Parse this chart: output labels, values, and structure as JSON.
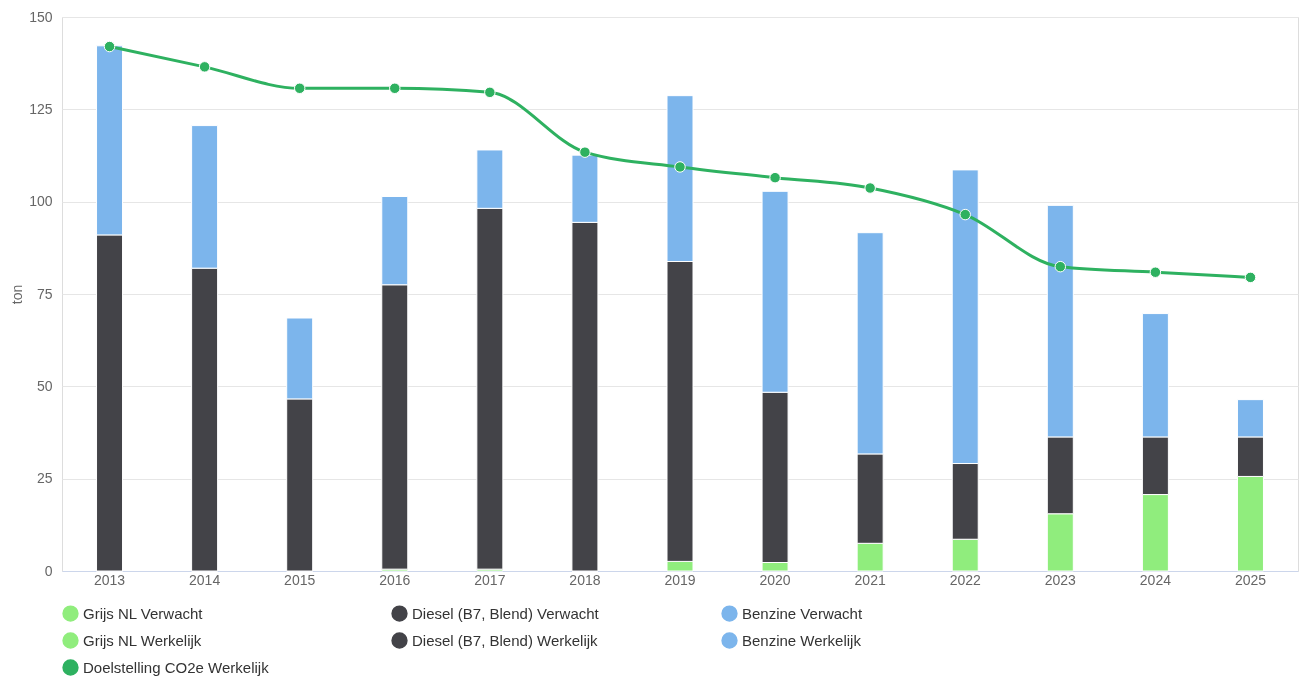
{
  "chart_data": {
    "type": "bar",
    "stacked": true,
    "ylabel": "ton",
    "categories": [
      "2013",
      "2014",
      "2015",
      "2016",
      "2017",
      "2018",
      "2019",
      "2020",
      "2021",
      "2022",
      "2023",
      "2024",
      "2025"
    ],
    "ylim": [
      0,
      150
    ],
    "yticks": [
      0,
      25,
      50,
      75,
      100,
      125,
      150
    ],
    "grid": "y",
    "legend": "bottom",
    "series": [
      {
        "name": "Grijs NL Verwacht",
        "color": "#90ed7d",
        "values": [
          null,
          null,
          null,
          null,
          null,
          null,
          null,
          null,
          null,
          null,
          15.5,
          20.7,
          25.6
        ]
      },
      {
        "name": "Diesel (B7, Blend) Verwacht",
        "color": "#434348",
        "values": [
          null,
          null,
          null,
          null,
          null,
          null,
          null,
          null,
          null,
          null,
          20.8,
          15.6,
          10.7
        ]
      },
      {
        "name": "Benzine Verwacht",
        "color": "#7cb5ec",
        "values": [
          null,
          null,
          null,
          null,
          null,
          null,
          null,
          null,
          null,
          null,
          62.7,
          33.4,
          10.1
        ]
      },
      {
        "name": "Grijs NL Werkelijk",
        "color": "#90ed7d",
        "values": [
          0,
          0,
          0,
          0.5,
          0.5,
          0,
          2.6,
          2.3,
          7.5,
          8.6,
          null,
          null,
          null
        ]
      },
      {
        "name": "Diesel (B7, Blend) Werkelijk",
        "color": "#434348",
        "values": [
          91,
          82,
          46.6,
          77,
          97.7,
          94.4,
          81.2,
          46.1,
          24.2,
          20.5,
          null,
          null,
          null
        ]
      },
      {
        "name": "Benzine Werkelijk",
        "color": "#7cb5ec",
        "values": [
          51.2,
          38.6,
          21.9,
          23.9,
          15.8,
          18.2,
          44.9,
          54.4,
          59.9,
          79.5,
          null,
          null,
          null
        ]
      },
      {
        "name": "Doelstelling CO2e Werkelijk",
        "type": "line",
        "color": "#2eb160",
        "marker": "circle",
        "values": [
          142,
          136.5,
          130.7,
          130.7,
          129.6,
          113.4,
          109.4,
          106.5,
          103.7,
          96.5,
          82.4,
          80.9,
          79.5
        ]
      }
    ]
  }
}
